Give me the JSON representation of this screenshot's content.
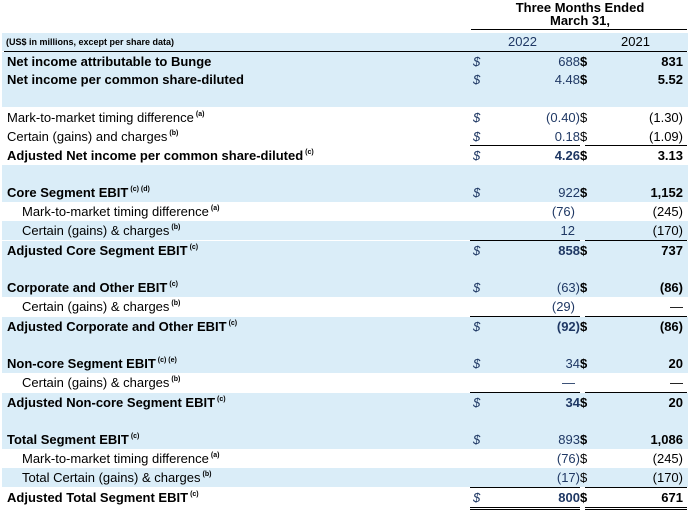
{
  "header": {
    "title_line1": "Three Months Ended",
    "title_line2": "March 31,",
    "units": "(US$ in millions, except per share data)",
    "year1": "2022",
    "year2": "2021"
  },
  "rows": [
    {
      "label": "Net income attributable to Bunge",
      "note": "",
      "cur": "$",
      "v2022": "688",
      "cur2": "$",
      "v2021": "831"
    },
    {
      "label": "Net income per common share-diluted",
      "note": "",
      "cur": "$",
      "v2022": "4.48",
      "cur2": "$",
      "v2021": "5.52"
    },
    {
      "label": "Mark-to-market timing difference",
      "note": "(a)",
      "cur": "$",
      "v2022": "(0.40)",
      "cur2": "$",
      "v2021": "(1.30)"
    },
    {
      "label": "Certain (gains) and charges",
      "note": "(b)",
      "cur": "$",
      "v2022": "0.18",
      "cur2": "$",
      "v2021": "(1.09)"
    },
    {
      "label": "Adjusted Net income per common share-diluted",
      "note": "(c)",
      "cur": "$",
      "v2022": "4.26",
      "cur2": "$",
      "v2021": "3.13"
    },
    {
      "label": "Core Segment EBIT",
      "note": "(c) (d)",
      "cur": "$",
      "v2022": "922",
      "cur2": "$",
      "v2021": "1,152"
    },
    {
      "label": "Mark-to-market timing difference",
      "note": "(a)",
      "cur": "",
      "v2022": "(76)",
      "cur2": "",
      "v2021": "(245)"
    },
    {
      "label": "Certain (gains) & charges",
      "note": "(b)",
      "cur": "",
      "v2022": "12",
      "cur2": "",
      "v2021": "(170)"
    },
    {
      "label": "Adjusted Core Segment EBIT",
      "note": "(c)",
      "cur": "$",
      "v2022": "858",
      "cur2": "$",
      "v2021": "737"
    },
    {
      "label": "Corporate and Other EBIT",
      "note": "(c)",
      "cur": "$",
      "v2022": "(63)",
      "cur2": "$",
      "v2021": "(86)"
    },
    {
      "label": "Certain (gains) & charges",
      "note": "(b)",
      "cur": "",
      "v2022": "(29)",
      "cur2": "",
      "v2021": "—"
    },
    {
      "label": "Adjusted Corporate and Other EBIT",
      "note": "(c)",
      "cur": "$",
      "v2022": "(92)",
      "cur2": "$",
      "v2021": "(86)"
    },
    {
      "label": "Non-core Segment EBIT",
      "note": "(c) (e)",
      "cur": "$",
      "v2022": "34",
      "cur2": "$",
      "v2021": "20"
    },
    {
      "label": "Certain (gains) & charges",
      "note": "(b)",
      "cur": "",
      "v2022": "—",
      "cur2": "",
      "v2021": "—"
    },
    {
      "label": "Adjusted Non-core Segment EBIT",
      "note": "(c)",
      "cur": "$",
      "v2022": "34",
      "cur2": "$",
      "v2021": "20"
    },
    {
      "label": "Total Segment EBIT",
      "note": "(c)",
      "cur": "$",
      "v2022": "893",
      "cur2": "$",
      "v2021": "1,086"
    },
    {
      "label": "Mark-to-market timing difference",
      "note": "(a)",
      "cur": "",
      "v2022": "(76)",
      "cur2": "$",
      "v2021": "(245)"
    },
    {
      "label": "Total Certain (gains) & charges",
      "note": "(b)",
      "cur": "",
      "v2022": "(17)",
      "cur2": "$",
      "v2021": "(170)"
    },
    {
      "label": "Adjusted Total Segment EBIT",
      "note": "(c)",
      "cur": "$",
      "v2022": "800",
      "cur2": "$",
      "v2021": "671"
    }
  ],
  "colors": {
    "band": "#daedf8",
    "value2022": "#1f3864"
  }
}
